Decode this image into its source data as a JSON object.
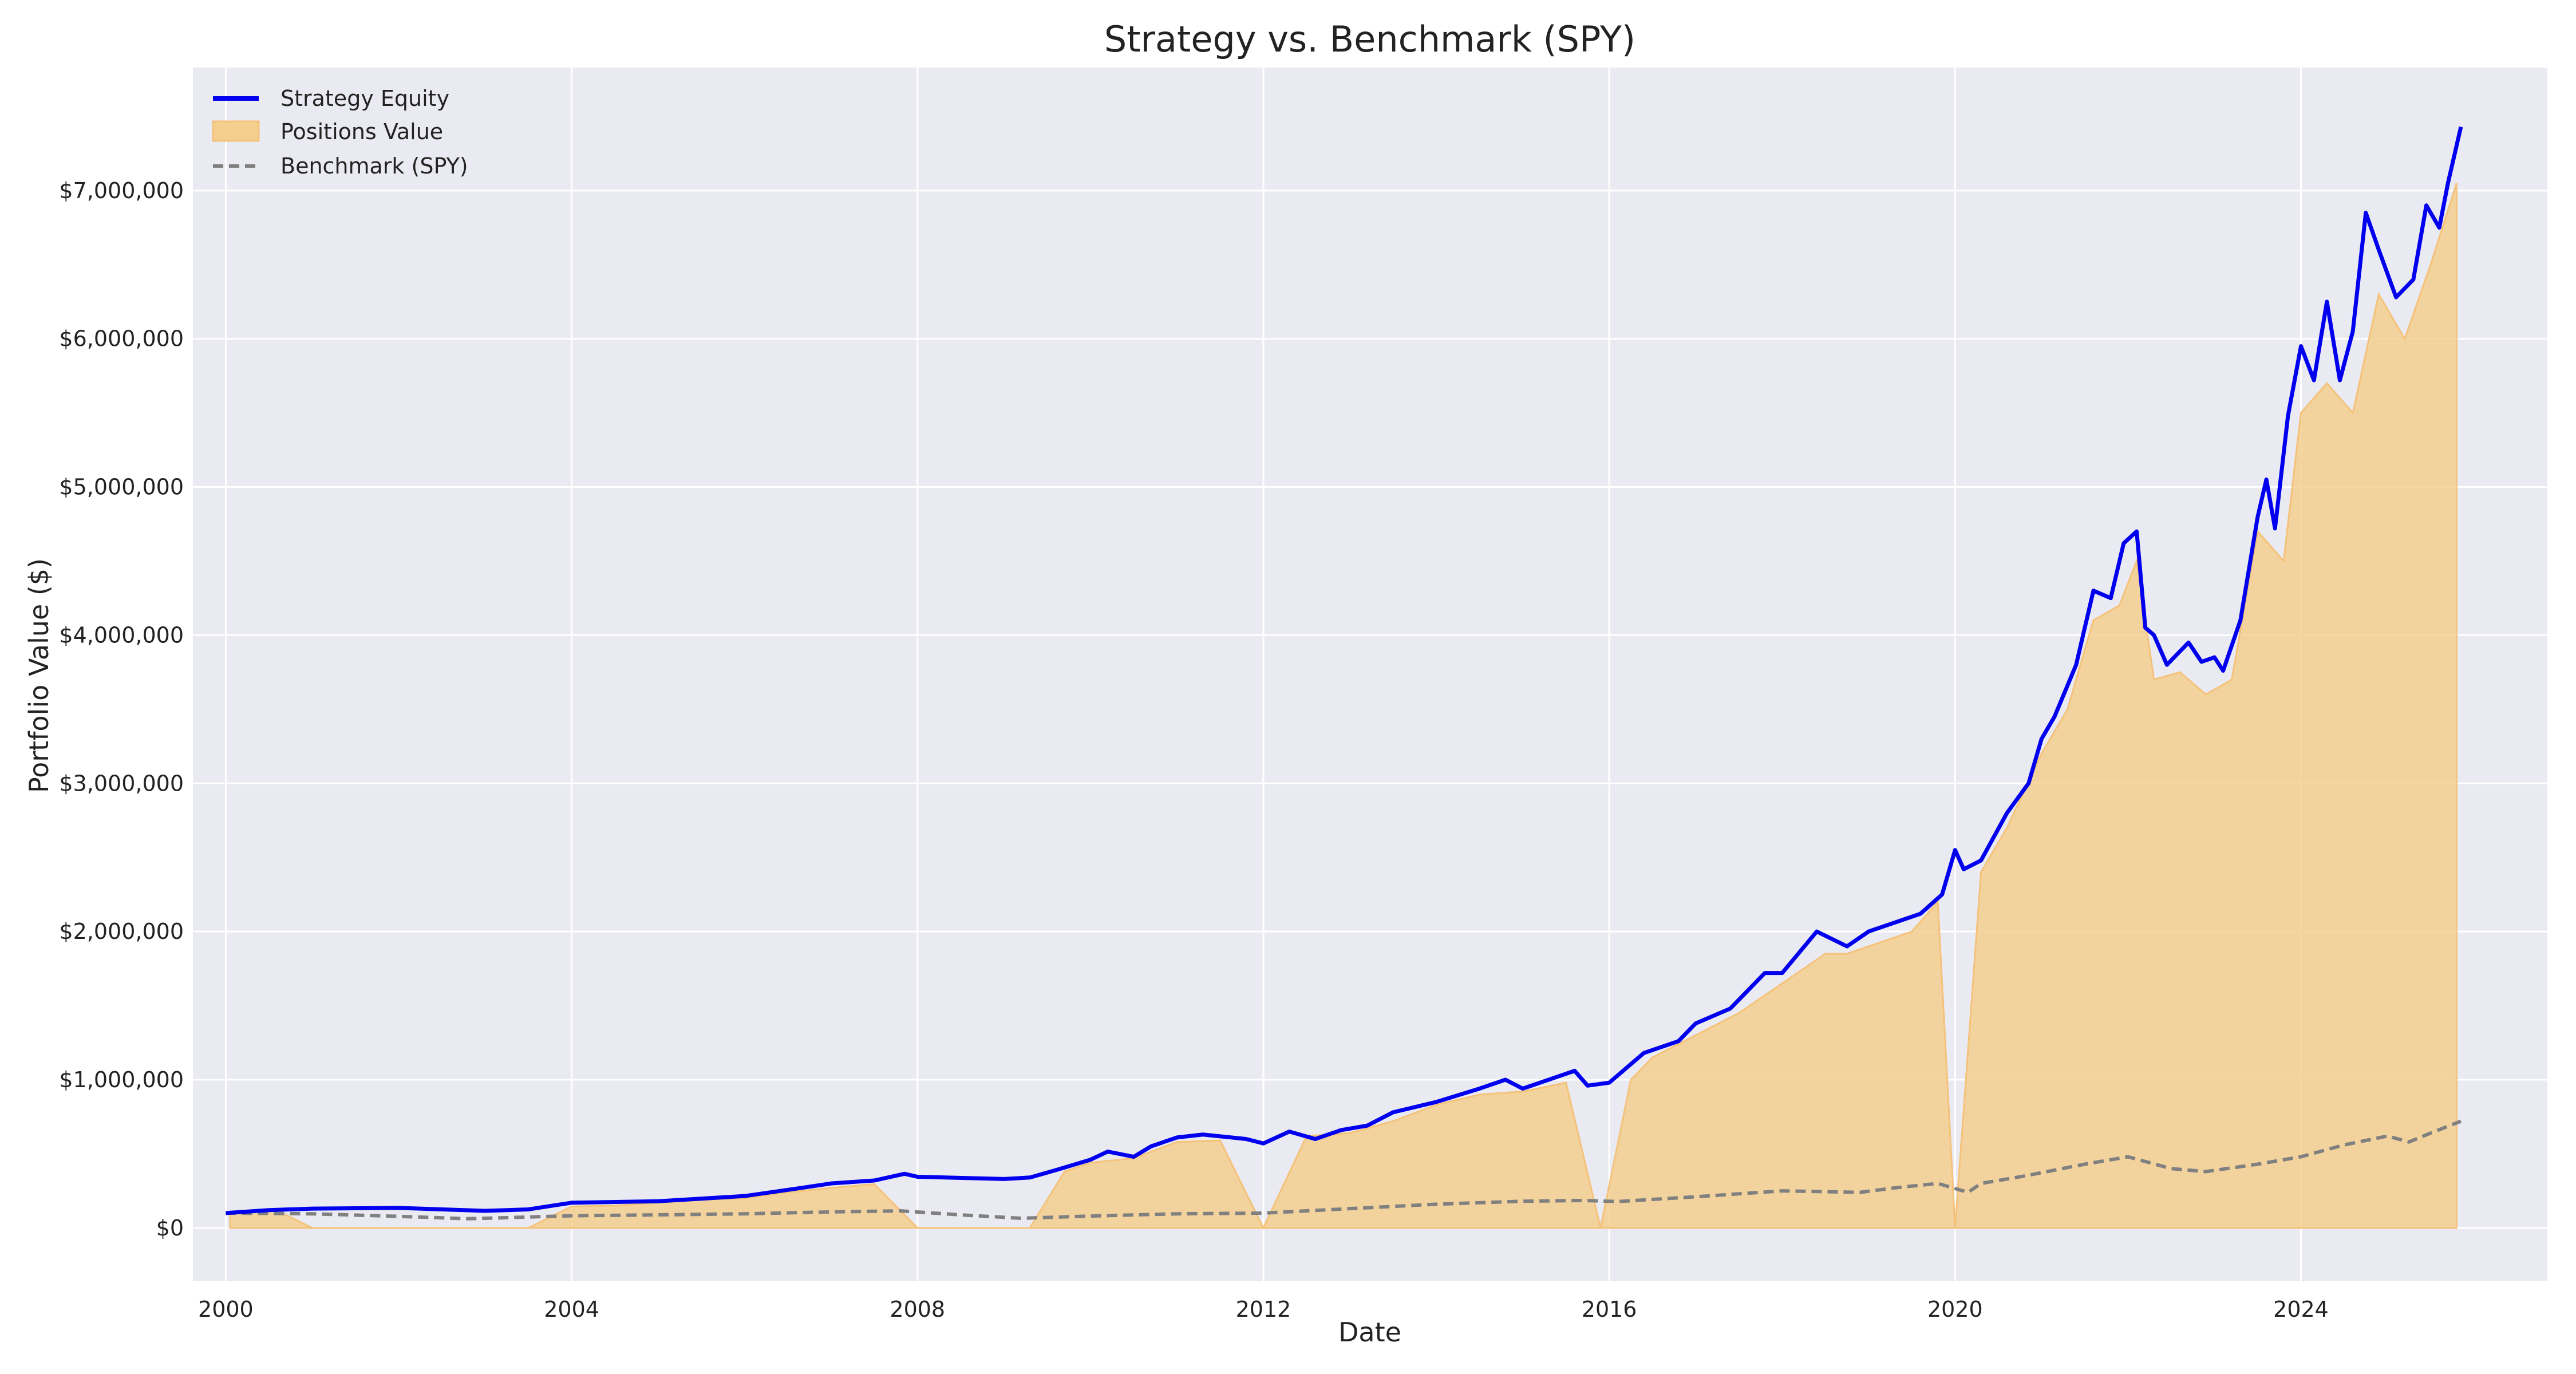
{
  "chart_data": {
    "type": "line",
    "title": "Strategy vs. Benchmark (SPY)",
    "xlabel": "Date",
    "ylabel": "Portfolio Value ($)",
    "xlim": [
      1999.62,
      2026.85
    ],
    "ylim": [
      -360000,
      7830000
    ],
    "x_ticks": [
      2000,
      2004,
      2008,
      2012,
      2016,
      2020,
      2024
    ],
    "x_tick_labels": [
      "2000",
      "2004",
      "2008",
      "2012",
      "2016",
      "2020",
      "2024"
    ],
    "y_ticks": [
      0,
      1000000,
      2000000,
      3000000,
      4000000,
      5000000,
      6000000,
      7000000
    ],
    "y_tick_labels": [
      "$0",
      "$1,000,000",
      "$2,000,000",
      "$3,000,000",
      "$4,000,000",
      "$5,000,000",
      "$6,000,000",
      "$7,000,000"
    ],
    "grid": true,
    "legend_position": "top-left",
    "colors": {
      "strategy": "#0000ee",
      "positions_fill": "#f5cf8e",
      "positions_line": "#f4c27a",
      "benchmark": "#808080",
      "plot_bg": "#eaeaf2",
      "grid": "#ffffff"
    },
    "series": [
      {
        "name": "Strategy Equity",
        "kind": "line",
        "x": [
          2000.0,
          2000.5,
          2001.0,
          2002.0,
          2003.0,
          2003.5,
          2004.0,
          2005.0,
          2006.0,
          2006.6,
          2007.0,
          2007.5,
          2007.85,
          2008.0,
          2009.0,
          2009.3,
          2009.6,
          2010.0,
          2010.2,
          2010.5,
          2010.7,
          2011.0,
          2011.3,
          2011.8,
          2012.0,
          2012.3,
          2012.6,
          2012.9,
          2013.2,
          2013.5,
          2014.0,
          2014.5,
          2014.8,
          2015.0,
          2015.3,
          2015.6,
          2015.75,
          2016.0,
          2016.4,
          2016.8,
          2017.0,
          2017.4,
          2017.8,
          2018.0,
          2018.4,
          2018.75,
          2019.0,
          2019.3,
          2019.6,
          2019.85,
          2020.0,
          2020.1,
          2020.3,
          2020.6,
          2020.85,
          2021.0,
          2021.15,
          2021.4,
          2021.6,
          2021.8,
          2021.95,
          2022.1,
          2022.2,
          2022.3,
          2022.45,
          2022.7,
          2022.85,
          2023.0,
          2023.1,
          2023.3,
          2023.5,
          2023.6,
          2023.7,
          2023.85,
          2024.0,
          2024.15,
          2024.3,
          2024.45,
          2024.6,
          2024.75,
          2024.9,
          2025.1,
          2025.3,
          2025.45,
          2025.6,
          2025.7,
          2025.85
        ],
        "values": [
          100000,
          120000,
          130000,
          135000,
          115000,
          125000,
          170000,
          180000,
          215000,
          265000,
          300000,
          320000,
          365000,
          345000,
          330000,
          340000,
          390000,
          460000,
          515000,
          480000,
          550000,
          610000,
          630000,
          600000,
          570000,
          650000,
          600000,
          660000,
          690000,
          780000,
          850000,
          940000,
          1000000,
          940000,
          1000000,
          1060000,
          960000,
          980000,
          1180000,
          1260000,
          1380000,
          1480000,
          1720000,
          1720000,
          2000000,
          1900000,
          2000000,
          2060000,
          2120000,
          2250000,
          2550000,
          2420000,
          2480000,
          2800000,
          3000000,
          3300000,
          3450000,
          3800000,
          4300000,
          4250000,
          4620000,
          4700000,
          4050000,
          4000000,
          3800000,
          3950000,
          3820000,
          3850000,
          3760000,
          4100000,
          4800000,
          5050000,
          4720000,
          5480000,
          5950000,
          5720000,
          6250000,
          5720000,
          6050000,
          6850000,
          6600000,
          6280000,
          6400000,
          6900000,
          6750000,
          7050000,
          7430000
        ]
      },
      {
        "name": "Positions Value",
        "kind": "fill",
        "x": [
          2000.05,
          2000.3,
          2000.6,
          2001.0,
          2001.5,
          2002.0,
          2002.5,
          2003.0,
          2003.5,
          2004.0,
          2004.5,
          2005.0,
          2005.5,
          2006.0,
          2006.5,
          2007.0,
          2007.5,
          2008.0,
          2008.3,
          2009.3,
          2009.7,
          2010.0,
          2010.5,
          2011.0,
          2011.5,
          2012.0,
          2012.5,
          2013.0,
          2013.5,
          2014.0,
          2014.5,
          2015.0,
          2015.5,
          2015.9,
          2016.25,
          2016.5,
          2017.0,
          2017.5,
          2018.0,
          2018.5,
          2018.75,
          2019.0,
          2019.5,
          2019.8,
          2020.0,
          2020.3,
          2020.6,
          2021.0,
          2021.3,
          2021.6,
          2021.9,
          2022.1,
          2022.3,
          2022.6,
          2022.9,
          2023.2,
          2023.5,
          2023.8,
          2024.0,
          2024.3,
          2024.6,
          2024.9,
          2025.2,
          2025.5,
          2025.8
        ],
        "values": [
          100000,
          110000,
          115000,
          0,
          0,
          0,
          0,
          0,
          0,
          145000,
          150000,
          170000,
          190000,
          200000,
          240000,
          270000,
          295000,
          0,
          0,
          0,
          380000,
          440000,
          470000,
          580000,
          590000,
          0,
          620000,
          640000,
          720000,
          830000,
          900000,
          920000,
          980000,
          0,
          1000000,
          1150000,
          1300000,
          1450000,
          1650000,
          1850000,
          1850000,
          1900000,
          2000000,
          2200000,
          0,
          2400000,
          2700000,
          3200000,
          3500000,
          4100000,
          4200000,
          4500000,
          3700000,
          3750000,
          3600000,
          3700000,
          4700000,
          4500000,
          5500000,
          5700000,
          5500000,
          6300000,
          6000000,
          6500000,
          7050000
        ]
      },
      {
        "name": "Benchmark (SPY)",
        "kind": "dashed-line",
        "x": [
          2000.0,
          2001.0,
          2002.0,
          2002.8,
          2003.3,
          2004.0,
          2005.0,
          2006.0,
          2007.0,
          2007.8,
          2008.5,
          2009.2,
          2010.0,
          2011.0,
          2012.0,
          2013.0,
          2014.0,
          2015.0,
          2015.7,
          2016.1,
          2017.0,
          2018.0,
          2018.9,
          2019.3,
          2019.8,
          2020.15,
          2020.3,
          2020.8,
          2021.5,
          2022.0,
          2022.5,
          2022.9,
          2023.5,
          2024.0,
          2024.5,
          2025.0,
          2025.25,
          2025.5,
          2025.85
        ],
        "values": [
          100000,
          95000,
          78000,
          62000,
          70000,
          82000,
          88000,
          95000,
          108000,
          115000,
          88000,
          65000,
          80000,
          95000,
          100000,
          130000,
          160000,
          180000,
          185000,
          178000,
          210000,
          250000,
          240000,
          270000,
          300000,
          240000,
          300000,
          350000,
          430000,
          480000,
          400000,
          380000,
          430000,
          480000,
          560000,
          620000,
          580000,
          640000,
          720000
        ]
      }
    ]
  }
}
